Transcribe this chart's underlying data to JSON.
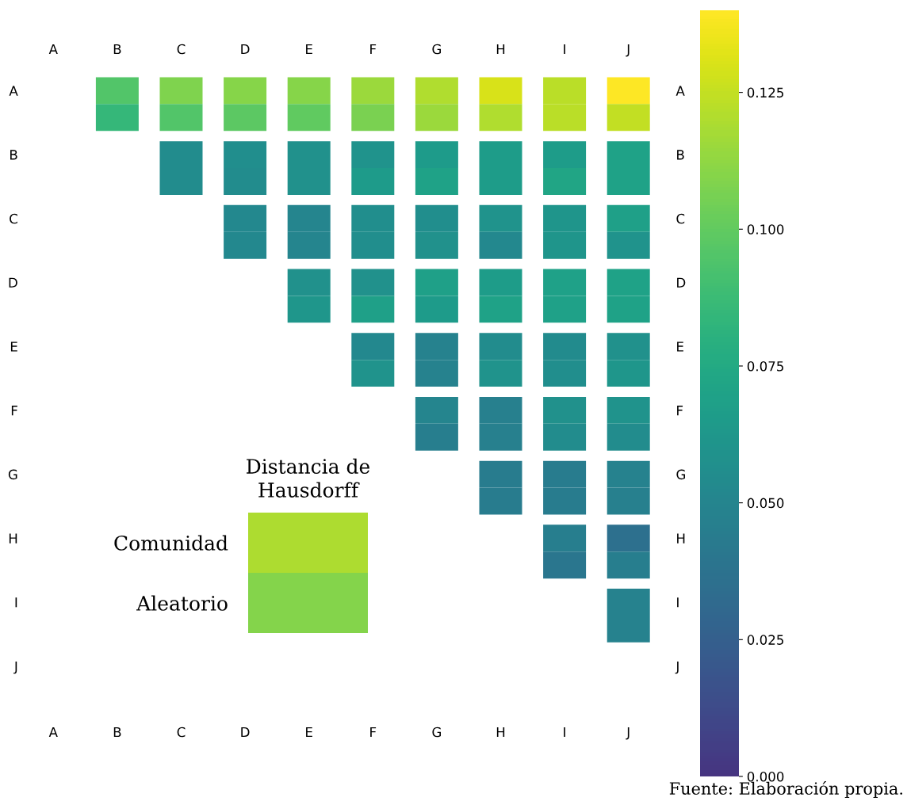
{
  "chart_data": [
    {
      "type": "heatmap",
      "categories": [
        "A",
        "B",
        "C",
        "D",
        "E",
        "F",
        "G",
        "H",
        "I",
        "J"
      ],
      "y_categories": [
        "A",
        null,
        "B",
        null,
        "C",
        null,
        "D",
        null,
        "E",
        null,
        "F",
        null,
        "G",
        null,
        "H",
        null,
        "I",
        null,
        "J"
      ],
      "y2_categories": [
        "A",
        null,
        "B",
        null,
        "C",
        null,
        "D",
        null,
        "E",
        null,
        "F",
        null,
        "G",
        null,
        "H",
        null,
        "I",
        null,
        "J"
      ],
      "clim": [
        0,
        0.14
      ],
      "cticks": [
        {
          "value": 0,
          "label": "0.000"
        },
        {
          "value": 0.025,
          "label": "0.025"
        },
        {
          "value": 0.05,
          "label": "0.050"
        },
        {
          "value": 0.075,
          "label": "0.075"
        },
        {
          "value": 0.1,
          "label": "0.100"
        },
        {
          "value": 0.125,
          "label": "0.125"
        }
      ],
      "annotations": [
        "Fuente: Elaboración propia."
      ],
      "cells": [
        [
          null,
          0.095,
          0.108,
          0.11,
          0.11,
          0.115,
          0.12,
          0.13,
          0.123,
          0.14
        ],
        [
          null,
          0.085,
          0.095,
          0.098,
          0.1,
          0.107,
          0.115,
          0.12,
          0.123,
          0.125
        ],
        [
          null,
          null,
          0.055,
          0.056,
          0.058,
          0.06,
          0.065,
          0.066,
          0.066,
          0.07
        ],
        [
          null,
          null,
          0.055,
          0.055,
          0.058,
          0.065,
          0.07,
          0.066,
          0.072,
          0.07
        ],
        [
          null,
          null,
          null,
          0.052,
          0.05,
          0.056,
          0.056,
          0.06,
          0.061,
          0.068
        ],
        [
          null,
          null,
          null,
          0.052,
          0.05,
          0.056,
          0.058,
          0.052,
          0.061,
          0.06
        ],
        [
          null,
          null,
          null,
          null,
          0.058,
          0.058,
          0.068,
          0.066,
          0.069,
          0.07
        ],
        [
          null,
          null,
          null,
          null,
          0.062,
          0.068,
          0.065,
          0.07,
          0.069,
          0.07
        ],
        [
          null,
          null,
          null,
          null,
          null,
          0.052,
          0.048,
          0.055,
          0.054,
          0.058
        ],
        [
          null,
          null,
          null,
          null,
          null,
          0.06,
          0.048,
          0.06,
          0.056,
          0.062
        ],
        [
          null,
          null,
          null,
          null,
          null,
          null,
          0.05,
          0.047,
          0.058,
          0.06
        ],
        [
          null,
          null,
          null,
          null,
          null,
          null,
          0.045,
          0.047,
          0.055,
          0.055
        ],
        [
          null,
          null,
          null,
          null,
          null,
          null,
          null,
          0.044,
          0.044,
          0.048
        ],
        [
          null,
          null,
          null,
          null,
          null,
          null,
          null,
          0.044,
          0.044,
          0.046
        ],
        [
          null,
          null,
          null,
          null,
          null,
          null,
          null,
          null,
          0.045,
          0.036
        ],
        [
          null,
          null,
          null,
          null,
          null,
          null,
          null,
          null,
          0.04,
          0.045
        ],
        [
          null,
          null,
          null,
          null,
          null,
          null,
          null,
          null,
          null,
          0.048
        ],
        [
          null,
          null,
          null,
          null,
          null,
          null,
          null,
          null,
          null,
          0.048
        ],
        [
          null,
          null,
          null,
          null,
          null,
          null,
          null,
          null,
          null,
          null
        ]
      ]
    },
    {
      "type": "other",
      "title": "Distancia de Hausdorff",
      "categories": [
        "Comunidad",
        "Aleatorio"
      ],
      "colors": [
        "#addc30",
        "#84d44b"
      ]
    }
  ]
}
